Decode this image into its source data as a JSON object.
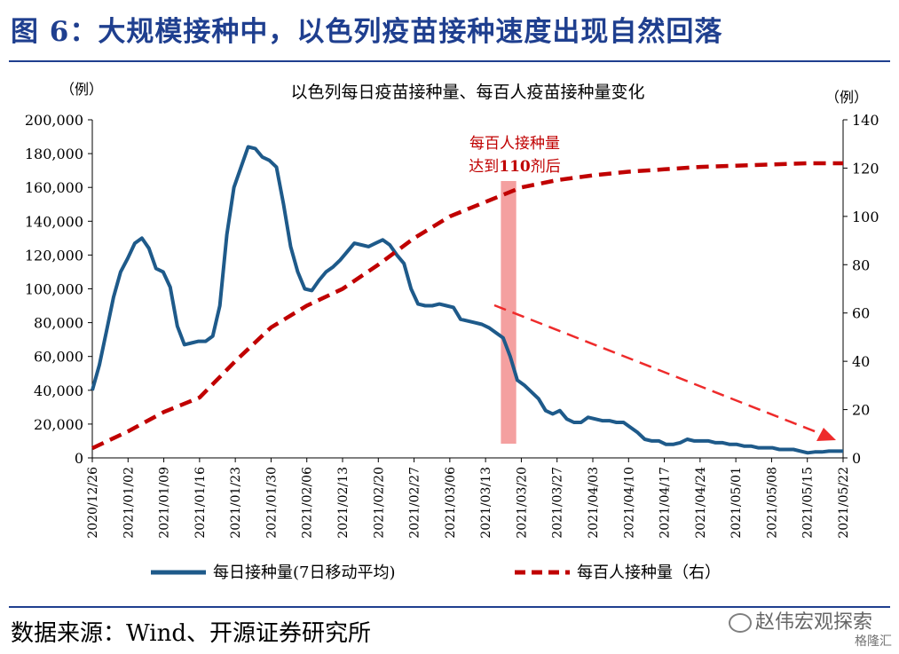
{
  "figure": {
    "title": "图 6：大规模接种中，以色列疫苗接种速度出现自然回落",
    "source": "数据来源：Wind、开源证券研究所",
    "watermark": "赵伟宏观探索",
    "watermark2": "格隆汇"
  },
  "chart_data": {
    "type": "line",
    "title": "以色列每日疫苗接种量、每百人疫苗接种量变化",
    "left_unit": "（例）",
    "right_unit": "（例）",
    "ylim_left": [
      0,
      200000
    ],
    "ylim_right": [
      0,
      140
    ],
    "left_ticks": [
      "0",
      "20,000",
      "40,000",
      "60,000",
      "80,000",
      "100,000",
      "120,000",
      "140,000",
      "160,000",
      "180,000",
      "200,000"
    ],
    "right_ticks": [
      "0",
      "20",
      "40",
      "60",
      "80",
      "100",
      "120",
      "140"
    ],
    "x_ticks": [
      "2020/12/26",
      "2021/01/02",
      "2021/01/09",
      "2021/01/16",
      "2021/01/23",
      "2021/01/30",
      "2021/02/06",
      "2021/02/13",
      "2021/02/20",
      "2021/02/27",
      "2021/03/06",
      "2021/03/13",
      "2021/03/20",
      "2021/03/27",
      "2021/04/03",
      "2021/04/10",
      "2021/04/17",
      "2021/04/24",
      "2021/05/01",
      "2021/05/08",
      "2021/05/15",
      "2021/05/22"
    ],
    "annotation": [
      "每百人接种量",
      "达到110剂后"
    ],
    "annotation_parts": {
      "line2_pre": "达到",
      "line2_num": "110",
      "line2_post": "剂后"
    },
    "highlight_date_range": [
      "2021/03/16",
      "2021/03/19"
    ],
    "colors": {
      "daily": "#1e5a8a",
      "per100": "#c00000",
      "highlight": "#f4a0a0",
      "arrow": "#ee2b2b"
    },
    "series": [
      {
        "name": "每日接种量(7日移动平均)",
        "axis": "left",
        "style": "solid",
        "values": [
          40000,
          55000,
          75000,
          95000,
          110000,
          118000,
          127000,
          130000,
          124000,
          112000,
          110000,
          101000,
          78000,
          67000,
          68000,
          69000,
          69000,
          72000,
          90000,
          132000,
          160000,
          172000,
          184000,
          183000,
          178000,
          176000,
          172000,
          150000,
          125000,
          110000,
          100000,
          99000,
          105000,
          110000,
          113000,
          117000,
          122000,
          127000,
          126000,
          125000,
          127000,
          129000,
          126000,
          120000,
          115000,
          100000,
          91000,
          90000,
          90000,
          91000,
          90000,
          89000,
          82000,
          81000,
          80000,
          79000,
          77000,
          74000,
          71000,
          60000,
          46000,
          43000,
          39000,
          35000,
          28000,
          26000,
          28000,
          23000,
          21000,
          21000,
          24000,
          23000,
          22000,
          22000,
          21000,
          21000,
          18000,
          15000,
          11000,
          10000,
          10000,
          8000,
          8000,
          9000,
          11000,
          10000,
          10000,
          10000,
          9000,
          9000,
          8000,
          8000,
          7000,
          7000,
          6000,
          6000,
          6000,
          5000,
          5000,
          5000,
          4000,
          3000,
          3500,
          3500,
          4000,
          4000,
          4000
        ]
      },
      {
        "name": "每百人接种量（右）",
        "axis": "right",
        "style": "dashed",
        "points": [
          [
            0,
            4
          ],
          [
            7,
            11
          ],
          [
            14,
            19
          ],
          [
            21,
            25
          ],
          [
            28,
            40
          ],
          [
            35,
            54
          ],
          [
            42,
            63
          ],
          [
            49,
            70
          ],
          [
            56,
            80
          ],
          [
            63,
            91
          ],
          [
            70,
            100
          ],
          [
            77,
            106
          ],
          [
            84,
            112
          ],
          [
            91,
            115
          ],
          [
            98,
            117
          ],
          [
            105,
            118.5
          ],
          [
            112,
            119.5
          ],
          [
            119,
            120.5
          ],
          [
            126,
            121
          ],
          [
            133,
            121.5
          ],
          [
            140,
            122
          ],
          [
            147,
            122
          ]
        ]
      }
    ]
  }
}
